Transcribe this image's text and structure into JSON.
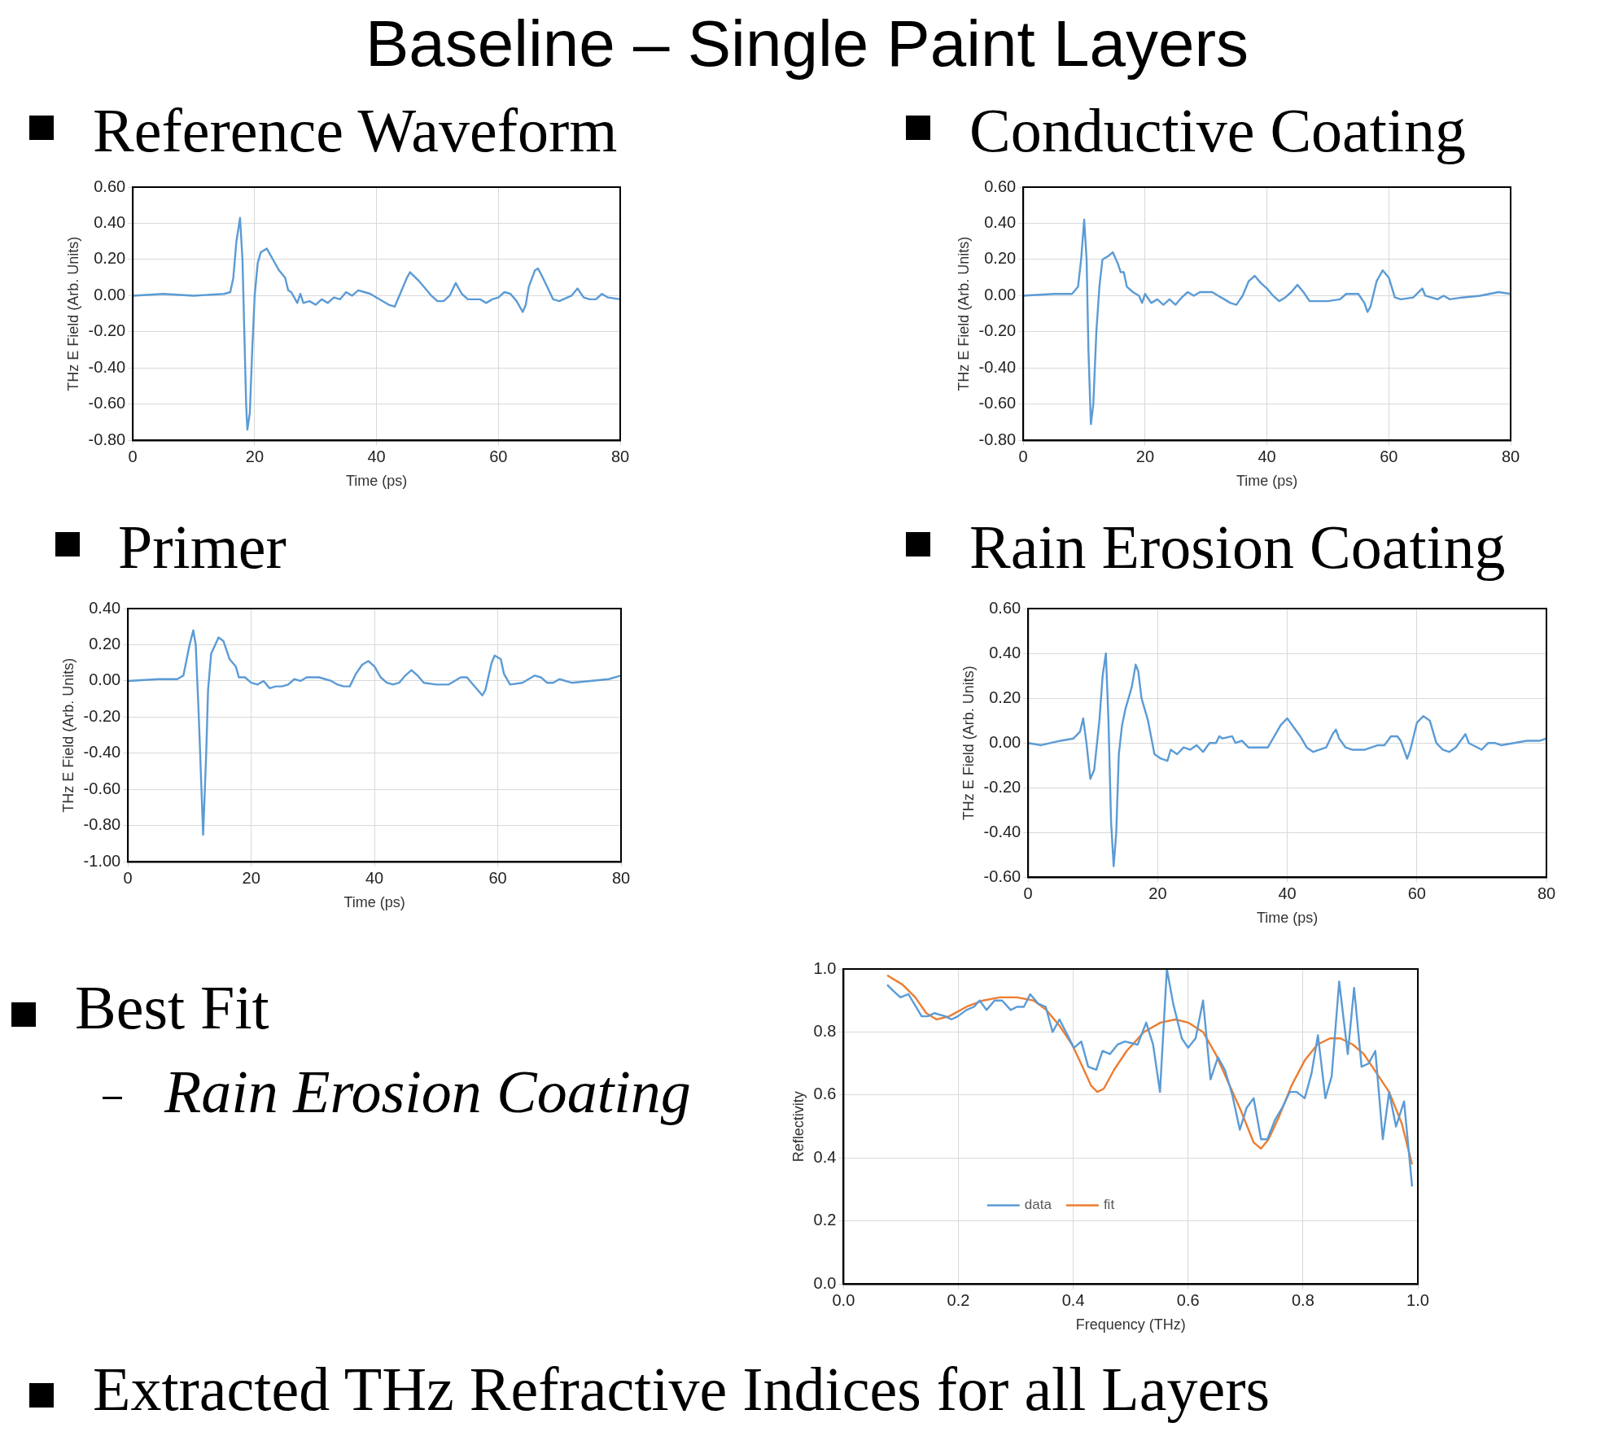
{
  "chart_data": [
    {
      "type": "other",
      "title": "Baseline – Single Paint Layers",
      "annotations": [
        "Best Fit",
        "Rain Erosion Coating",
        "Extracted THz Refractive Indices for all Layers"
      ]
    },
    {
      "type": "line",
      "title": "Reference Waveform",
      "xlabel": "Time (ps)",
      "ylabel": "THz E Field (Arb. Units)",
      "color": "#5b9bd5",
      "grid": true,
      "x": [
        0,
        5,
        10,
        15,
        16,
        16.5,
        17,
        17.6,
        18,
        18.3,
        18.6,
        18.8,
        19.2,
        19.6,
        20,
        20.5,
        21,
        22,
        23,
        24,
        25,
        25.5,
        26,
        27,
        27.5,
        28,
        29,
        30,
        31,
        32,
        33,
        34,
        35,
        36,
        37,
        38,
        39,
        40,
        42,
        43,
        44,
        45,
        45.5,
        47,
        48,
        49,
        50,
        51,
        52,
        53,
        54,
        55,
        57,
        58,
        59,
        60,
        61,
        62,
        63,
        64,
        64.5,
        65,
        66,
        66.5,
        67,
        68,
        69,
        70,
        72,
        73,
        74,
        75,
        76,
        77,
        78,
        80
      ],
      "values": [
        0,
        0.01,
        0,
        0.01,
        0.02,
        0.1,
        0.3,
        0.43,
        0.2,
        -0.2,
        -0.6,
        -0.74,
        -0.65,
        -0.3,
        0,
        0.18,
        0.24,
        0.26,
        0.2,
        0.14,
        0.1,
        0.03,
        0.02,
        -0.04,
        0.01,
        -0.04,
        -0.03,
        -0.05,
        -0.02,
        -0.04,
        -0.01,
        -0.02,
        0.02,
        0,
        0.03,
        0.02,
        0.01,
        -0.01,
        -0.05,
        -0.06,
        0.02,
        0.1,
        0.13,
        0.08,
        0.04,
        0,
        -0.03,
        -0.03,
        0,
        0.07,
        0.01,
        -0.02,
        -0.02,
        -0.04,
        -0.02,
        -0.01,
        0.02,
        0.01,
        -0.03,
        -0.09,
        -0.05,
        0.05,
        0.14,
        0.15,
        0.12,
        0.05,
        -0.02,
        -0.03,
        0,
        0.04,
        -0.01,
        -0.02,
        -0.02,
        0.01,
        -0.01,
        -0.02
      ],
      "xlim": [
        0,
        80
      ],
      "xticks": [
        0,
        20,
        40,
        60,
        80
      ],
      "ylim": [
        -0.8,
        0.6
      ],
      "yticks": [
        {
          "value": -0.8,
          "label": "-0.80"
        },
        {
          "value": -0.6,
          "label": "-0.60"
        },
        {
          "value": -0.4,
          "label": "-0.40"
        },
        {
          "value": -0.2,
          "label": "-0.20"
        },
        {
          "value": 0,
          "label": "0.00"
        },
        {
          "value": 0.2,
          "label": "0.20"
        },
        {
          "value": 0.4,
          "label": "0.40"
        },
        {
          "value": 0.6,
          "label": "0.60"
        }
      ]
    },
    {
      "type": "line",
      "title": "Conductive Coating",
      "xlabel": "Time (ps)",
      "ylabel": "THz E Field (Arb. Units)",
      "color": "#5b9bd5",
      "grid": true,
      "x": [
        0,
        5,
        8,
        9,
        9.5,
        10,
        10.4,
        10.7,
        11.1,
        11.5,
        12,
        12.5,
        13,
        14,
        14.7,
        15.5,
        16,
        16.5,
        17,
        18,
        19,
        19.5,
        20,
        21,
        22,
        23,
        24,
        25,
        26,
        27,
        28,
        29,
        30,
        31,
        32,
        33,
        34,
        35,
        36,
        37,
        38,
        39,
        40,
        41,
        42,
        43,
        44,
        45,
        46,
        47,
        48,
        50,
        52,
        53,
        55,
        56,
        56.5,
        57,
        58,
        59,
        60,
        61,
        62,
        64,
        65.5,
        66,
        68,
        69,
        70,
        72,
        75,
        78,
        80
      ],
      "values": [
        0,
        0.01,
        0.01,
        0.05,
        0.2,
        0.42,
        0.2,
        -0.3,
        -0.71,
        -0.6,
        -0.2,
        0.05,
        0.2,
        0.22,
        0.24,
        0.18,
        0.13,
        0.13,
        0.05,
        0.02,
        0,
        -0.04,
        0.01,
        -0.04,
        -0.02,
        -0.05,
        -0.02,
        -0.05,
        -0.01,
        0.02,
        0,
        0.02,
        0.02,
        0.02,
        0,
        -0.02,
        -0.04,
        -0.05,
        0,
        0.08,
        0.11,
        0.07,
        0.04,
        0,
        -0.03,
        -0.01,
        0.02,
        0.06,
        0.02,
        -0.03,
        -0.03,
        -0.03,
        -0.02,
        0.01,
        0.01,
        -0.04,
        -0.09,
        -0.06,
        0.08,
        0.14,
        0.1,
        -0.01,
        -0.02,
        -0.01,
        0.04,
        0,
        -0.02,
        0,
        -0.02,
        -0.01,
        0,
        0.02,
        0.01
      ],
      "xlim": [
        0,
        80
      ],
      "xticks": [
        0,
        20,
        40,
        60,
        80
      ],
      "ylim": [
        -0.8,
        0.6
      ],
      "yticks": [
        {
          "value": -0.8,
          "label": "-0.80"
        },
        {
          "value": -0.6,
          "label": "-0.60"
        },
        {
          "value": -0.4,
          "label": "-0.40"
        },
        {
          "value": -0.2,
          "label": "-0.20"
        },
        {
          "value": 0,
          "label": "0.00"
        },
        {
          "value": 0.2,
          "label": "0.20"
        },
        {
          "value": 0.4,
          "label": "0.40"
        },
        {
          "value": 0.6,
          "label": "0.60"
        }
      ]
    },
    {
      "type": "line",
      "title": "Primer",
      "xlabel": "Time (ps)",
      "ylabel": "THz E Field (Arb. Units)",
      "color": "#5b9bd5",
      "grid": true,
      "x": [
        0,
        5,
        8,
        9,
        10,
        10.6,
        11,
        11.5,
        12.2,
        12.7,
        13,
        13.5,
        14.7,
        15.5,
        16.5,
        17.5,
        18,
        19,
        20,
        21,
        22,
        23,
        24,
        25,
        26,
        27,
        28,
        29,
        30,
        31,
        32,
        33,
        34,
        35,
        36,
        37,
        38,
        39,
        40,
        41,
        42,
        43,
        44,
        45,
        46,
        47,
        48,
        50,
        52,
        54,
        55,
        56,
        57,
        57.5,
        58,
        59,
        59.5,
        60.5,
        61,
        62,
        64,
        66,
        67,
        68,
        69,
        70,
        72,
        75,
        78,
        80
      ],
      "values": [
        0,
        0.01,
        0.01,
        0.03,
        0.2,
        0.28,
        0.2,
        -0.2,
        -0.85,
        -0.4,
        -0.05,
        0.15,
        0.24,
        0.22,
        0.12,
        0.08,
        0.02,
        0.02,
        -0.01,
        -0.02,
        0,
        -0.04,
        -0.03,
        -0.03,
        -0.02,
        0.01,
        0,
        0.02,
        0.02,
        0.02,
        0.01,
        0,
        -0.02,
        -0.03,
        -0.03,
        0.04,
        0.09,
        0.11,
        0.08,
        0.02,
        -0.01,
        -0.02,
        -0.01,
        0.03,
        0.06,
        0.03,
        -0.01,
        -0.02,
        -0.02,
        0.02,
        0.02,
        -0.02,
        -0.06,
        -0.08,
        -0.05,
        0.1,
        0.14,
        0.12,
        0.04,
        -0.02,
        -0.01,
        0.03,
        0.02,
        -0.01,
        -0.01,
        0.01,
        -0.01,
        0,
        0.01,
        0.03
      ],
      "xlim": [
        0,
        80
      ],
      "xticks": [
        0,
        20,
        40,
        60,
        80
      ],
      "ylim": [
        -1,
        0.4
      ],
      "yticks": [
        {
          "value": -1,
          "label": "-1.00"
        },
        {
          "value": -0.8,
          "label": "-0.80"
        },
        {
          "value": -0.6,
          "label": "-0.60"
        },
        {
          "value": -0.4,
          "label": "-0.40"
        },
        {
          "value": -0.2,
          "label": "-0.20"
        },
        {
          "value": 0,
          "label": "0.00"
        },
        {
          "value": 0.2,
          "label": "0.20"
        },
        {
          "value": 0.4,
          "label": "0.40"
        }
      ]
    },
    {
      "type": "line",
      "title": "Rain Erosion Coating",
      "xlabel": "Time (ps)",
      "ylabel": "THz E Field (Arb. Units)",
      "color": "#5b9bd5",
      "grid": true,
      "x": [
        0,
        2,
        5,
        7,
        8,
        8.5,
        9,
        9.6,
        10.2,
        11,
        11.5,
        12,
        12.4,
        12.8,
        13.2,
        13.6,
        14,
        14.5,
        15,
        16,
        16.6,
        17,
        17.5,
        18.5,
        19.5,
        20.5,
        21.5,
        22,
        23,
        24,
        25,
        26,
        27,
        28,
        29,
        29.5,
        30,
        31.5,
        32,
        33,
        34,
        35,
        37,
        38,
        39,
        40,
        41,
        42,
        43,
        44,
        46,
        47,
        47.5,
        48,
        49,
        50,
        52,
        54,
        55,
        56,
        57,
        57.5,
        58.5,
        59,
        60,
        61,
        62,
        63,
        64,
        65,
        66,
        67,
        67.5,
        68,
        70,
        71,
        72,
        73,
        75,
        77,
        79,
        80
      ],
      "values": [
        0,
        -0.01,
        0.01,
        0.02,
        0.05,
        0.11,
        0,
        -0.16,
        -0.12,
        0.1,
        0.3,
        0.4,
        0.1,
        -0.35,
        -0.55,
        -0.4,
        -0.05,
        0.08,
        0.15,
        0.25,
        0.35,
        0.32,
        0.2,
        0.1,
        -0.05,
        -0.07,
        -0.08,
        -0.03,
        -0.05,
        -0.02,
        -0.03,
        -0.01,
        -0.04,
        0,
        0,
        0.03,
        0.02,
        0.03,
        0,
        0.01,
        -0.02,
        -0.02,
        -0.02,
        0.03,
        0.08,
        0.11,
        0.07,
        0.03,
        -0.02,
        -0.04,
        -0.02,
        0.04,
        0.06,
        0.02,
        -0.02,
        -0.03,
        -0.03,
        -0.01,
        -0.01,
        0.03,
        0.03,
        0.01,
        -0.07,
        -0.03,
        0.09,
        0.12,
        0.1,
        0,
        -0.03,
        -0.04,
        -0.02,
        0.02,
        0.04,
        0,
        -0.03,
        0,
        0,
        -0.01,
        0,
        0.01,
        0.01,
        0.02
      ],
      "xlim": [
        0,
        80
      ],
      "xticks": [
        0,
        20,
        40,
        60,
        80
      ],
      "ylim": [
        -0.6,
        0.6
      ],
      "yticks": [
        {
          "value": -0.6,
          "label": "-0.60"
        },
        {
          "value": -0.4,
          "label": "-0.40"
        },
        {
          "value": -0.2,
          "label": "-0.20"
        },
        {
          "value": 0,
          "label": "0.00"
        },
        {
          "value": 0.2,
          "label": "0.20"
        },
        {
          "value": 0.4,
          "label": "0.40"
        },
        {
          "value": 0.6,
          "label": "0.60"
        }
      ]
    },
    {
      "type": "line",
      "xlabel": "Frequency (THz)",
      "ylabel": "Reflectivity",
      "grid": true,
      "legend": "bottom left",
      "series": [
        {
          "name": "data",
          "color": "#5b9bd5",
          "x": [
            0.076,
            0.087,
            0.099,
            0.113,
            0.136,
            0.147,
            0.158,
            0.177,
            0.188,
            0.199,
            0.214,
            0.227,
            0.237,
            0.249,
            0.263,
            0.276,
            0.291,
            0.302,
            0.314,
            0.325,
            0.339,
            0.352,
            0.364,
            0.376,
            0.39,
            0.401,
            0.414,
            0.426,
            0.44,
            0.451,
            0.464,
            0.477,
            0.49,
            0.512,
            0.527,
            0.539,
            0.551,
            0.563,
            0.574,
            0.589,
            0.6,
            0.613,
            0.626,
            0.639,
            0.652,
            0.664,
            0.677,
            0.69,
            0.702,
            0.714,
            0.727,
            0.738,
            0.751,
            0.764,
            0.777,
            0.789,
            0.803,
            0.815,
            0.826,
            0.839,
            0.85,
            0.863,
            0.878,
            0.889,
            0.902,
            0.914,
            0.926,
            0.939,
            0.95,
            0.962,
            0.976,
            0.99
          ],
          "values": [
            0.95,
            0.93,
            0.91,
            0.92,
            0.85,
            0.85,
            0.86,
            0.85,
            0.84,
            0.85,
            0.87,
            0.88,
            0.9,
            0.87,
            0.9,
            0.9,
            0.87,
            0.88,
            0.88,
            0.92,
            0.89,
            0.88,
            0.8,
            0.84,
            0.79,
            0.75,
            0.77,
            0.69,
            0.68,
            0.74,
            0.73,
            0.76,
            0.77,
            0.76,
            0.83,
            0.76,
            0.61,
            1.0,
            0.89,
            0.78,
            0.75,
            0.78,
            0.9,
            0.65,
            0.72,
            0.68,
            0.6,
            0.49,
            0.56,
            0.59,
            0.46,
            0.46,
            0.52,
            0.56,
            0.61,
            0.61,
            0.59,
            0.67,
            0.79,
            0.59,
            0.66,
            0.96,
            0.73,
            0.94,
            0.69,
            0.7,
            0.74,
            0.46,
            0.61,
            0.5,
            0.58,
            0.31
          ]
        },
        {
          "name": "fit",
          "color": "#ed7d31",
          "x": [
            0.076,
            0.103,
            0.125,
            0.144,
            0.162,
            0.184,
            0.214,
            0.243,
            0.272,
            0.302,
            0.331,
            0.353,
            0.376,
            0.398,
            0.416,
            0.431,
            0.442,
            0.453,
            0.471,
            0.493,
            0.523,
            0.552,
            0.578,
            0.6,
            0.626,
            0.648,
            0.67,
            0.692,
            0.714,
            0.727,
            0.74,
            0.758,
            0.78,
            0.803,
            0.825,
            0.847,
            0.865,
            0.887,
            0.906,
            0.928,
            0.95,
            0.972,
            0.99
          ],
          "values": [
            0.98,
            0.95,
            0.91,
            0.86,
            0.84,
            0.85,
            0.88,
            0.9,
            0.91,
            0.91,
            0.9,
            0.87,
            0.82,
            0.76,
            0.69,
            0.63,
            0.61,
            0.62,
            0.68,
            0.74,
            0.8,
            0.83,
            0.84,
            0.83,
            0.8,
            0.73,
            0.64,
            0.55,
            0.45,
            0.43,
            0.46,
            0.53,
            0.63,
            0.71,
            0.76,
            0.78,
            0.78,
            0.76,
            0.73,
            0.67,
            0.61,
            0.51,
            0.38
          ]
        }
      ],
      "xlim": [
        0,
        1
      ],
      "xticks": [
        {
          "value": 0,
          "label": "0.0"
        },
        {
          "value": 0.2,
          "label": "0.2"
        },
        {
          "value": 0.4,
          "label": "0.4"
        },
        {
          "value": 0.6,
          "label": "0.6"
        },
        {
          "value": 0.8,
          "label": "0.8"
        },
        {
          "value": 1,
          "label": "1.0"
        }
      ],
      "ylim": [
        0,
        1
      ],
      "yticks": [
        {
          "value": 0,
          "label": "0.0"
        },
        {
          "value": 0.2,
          "label": "0.2"
        },
        {
          "value": 0.4,
          "label": "0.4"
        },
        {
          "value": 0.6,
          "label": "0.6"
        },
        {
          "value": 0.8,
          "label": "0.8"
        },
        {
          "value": 1,
          "label": "1.0"
        }
      ]
    }
  ]
}
